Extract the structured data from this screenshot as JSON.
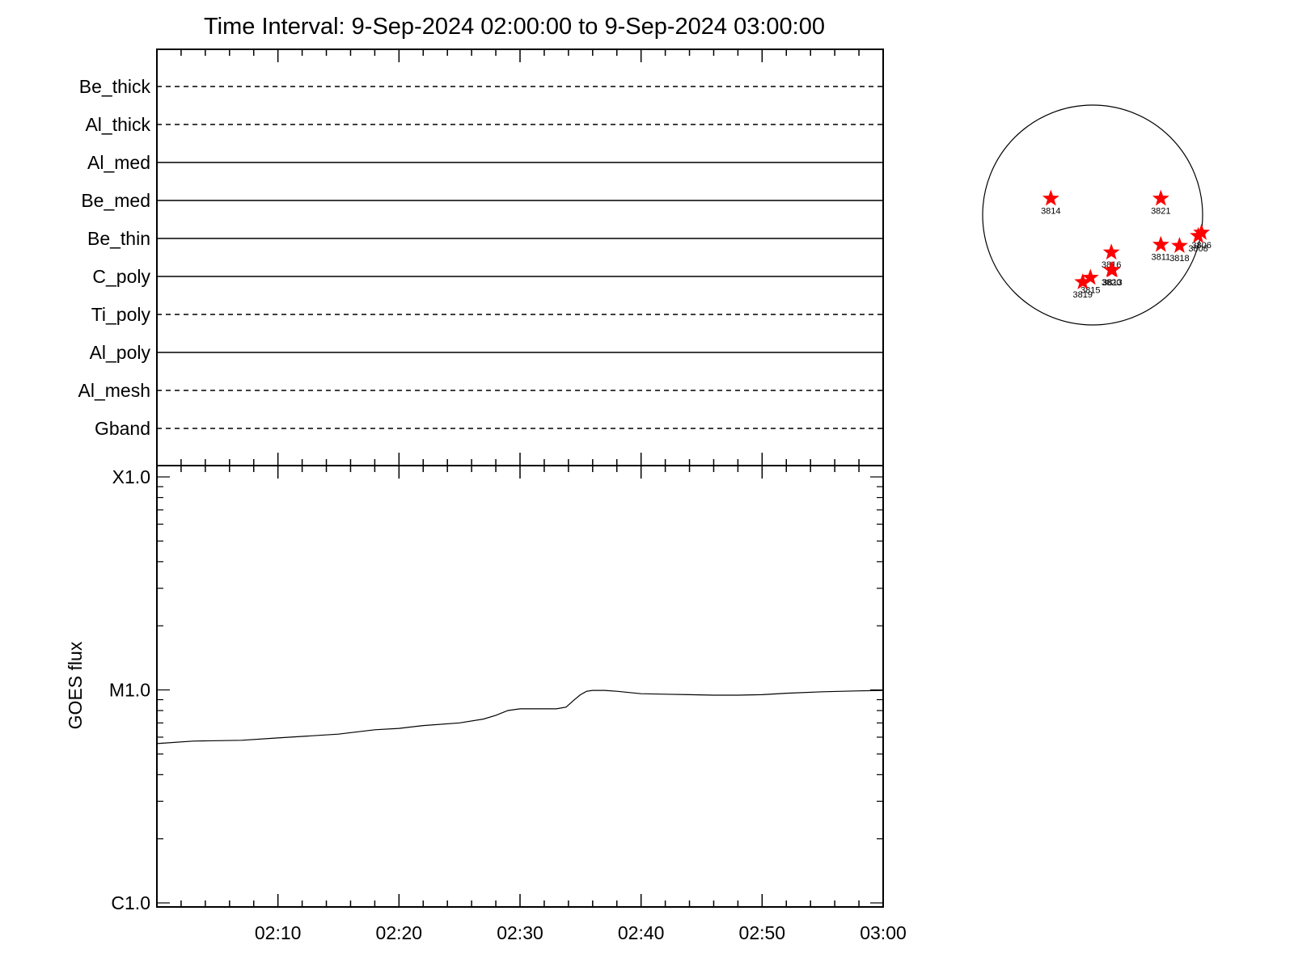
{
  "title": "Time Interval:  9-Sep-2024 02:00:00 to  9-Sep-2024 03:00:00",
  "chart_data": [
    {
      "type": "line",
      "panel": "filter-status",
      "rows": [
        {
          "label": "Be_thick",
          "style": "dashed"
        },
        {
          "label": "Al_thick",
          "style": "dashed"
        },
        {
          "label": "Al_med",
          "style": "solid"
        },
        {
          "label": "Be_med",
          "style": "solid"
        },
        {
          "label": "Be_thin",
          "style": "solid"
        },
        {
          "label": "C_poly",
          "style": "solid"
        },
        {
          "label": "Ti_poly",
          "style": "dashed"
        },
        {
          "label": "Al_poly",
          "style": "solid"
        },
        {
          "label": "Al_mesh",
          "style": "dashed"
        },
        {
          "label": "Gband",
          "style": "dashed"
        }
      ],
      "xlim": [
        "02:00",
        "03:00"
      ]
    },
    {
      "type": "line",
      "panel": "goes-flux",
      "ylabel": "GOES flux",
      "yscale": "log",
      "ylim": [
        1e-06,
        0.0001
      ],
      "yticks": [
        {
          "label": "C1.0",
          "value": 1e-06
        },
        {
          "label": "M1.0",
          "value": 1e-05
        },
        {
          "label": "X1.0",
          "value": 0.0001
        }
      ],
      "xlim": [
        0,
        60
      ],
      "xticks": [
        {
          "label": "02:10",
          "value": 10
        },
        {
          "label": "02:20",
          "value": 20
        },
        {
          "label": "02:30",
          "value": 30
        },
        {
          "label": "02:40",
          "value": 40
        },
        {
          "label": "02:50",
          "value": 50
        },
        {
          "label": "03:00",
          "value": 60
        }
      ],
      "series": [
        {
          "x": [
            0,
            3,
            7,
            10,
            15,
            18,
            20,
            22,
            25,
            27,
            28,
            29,
            30,
            31,
            32,
            33,
            33.8,
            34.5,
            35,
            35.5,
            36,
            37,
            38,
            40,
            42,
            44,
            46,
            48,
            50,
            52,
            55,
            58,
            60
          ],
          "y": [
            5.6e-06,
            5.75e-06,
            5.8e-06,
            5.95e-06,
            6.2e-06,
            6.5e-06,
            6.6e-06,
            6.8e-06,
            7e-06,
            7.3e-06,
            7.6e-06,
            8e-06,
            8.15e-06,
            8.15e-06,
            8.15e-06,
            8.15e-06,
            8.3e-06,
            9e-06,
            9.5e-06,
            9.85e-06,
            9.95e-06,
            9.95e-06,
            9.85e-06,
            9.6e-06,
            9.55e-06,
            9.5e-06,
            9.45e-06,
            9.45e-06,
            9.5e-06,
            9.65e-06,
            9.8e-06,
            9.9e-06,
            9.95e-06
          ]
        }
      ]
    },
    {
      "type": "scatter",
      "panel": "solar-disk",
      "points": [
        {
          "label": "3814",
          "x": -0.38,
          "y": 0.15
        },
        {
          "label": "3821",
          "x": 0.62,
          "y": 0.15
        },
        {
          "label": "3811",
          "x": 0.62,
          "y": -0.27
        },
        {
          "label": "3818",
          "x": 0.79,
          "y": -0.28
        },
        {
          "label": "3806",
          "x": 0.99,
          "y": -0.16
        },
        {
          "label": "3808",
          "x": 0.96,
          "y": -0.19
        },
        {
          "label": "3816",
          "x": 0.17,
          "y": -0.34
        },
        {
          "label": "3820",
          "x": 0.17,
          "y": -0.5
        },
        {
          "label": "3813",
          "x": 0.18,
          "y": -0.5
        },
        {
          "label": "3815",
          "x": -0.02,
          "y": -0.57
        },
        {
          "label": "3819",
          "x": -0.09,
          "y": -0.61
        }
      ]
    }
  ]
}
